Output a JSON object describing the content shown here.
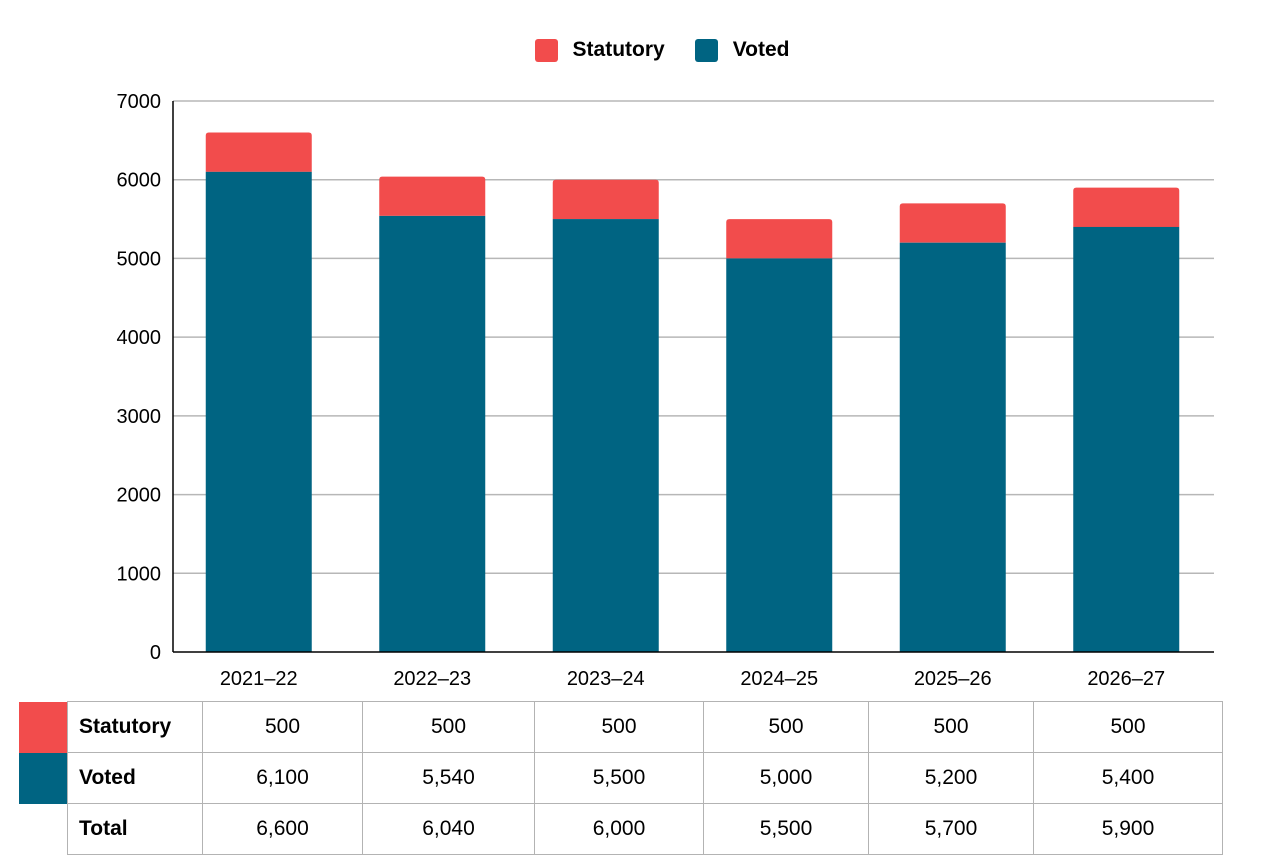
{
  "chart_data": {
    "type": "bar",
    "stacked": true,
    "categories": [
      "2021–22",
      "2022–23",
      "2023–24",
      "2024–25",
      "2025–26",
      "2026–27"
    ],
    "series": [
      {
        "name": "Voted",
        "values": [
          6100,
          5540,
          5500,
          5000,
          5200,
          5400
        ],
        "color": "#006482"
      },
      {
        "name": "Statutory",
        "values": [
          500,
          500,
          500,
          500,
          500,
          500
        ],
        "color": "#f24c4c"
      }
    ],
    "ylim": [
      0,
      7000
    ],
    "yticks": [
      0,
      1000,
      2000,
      3000,
      4000,
      5000,
      6000,
      7000
    ],
    "grid": true,
    "legend_position": "top"
  },
  "legend": [
    {
      "label": "Statutory",
      "color": "#f24c4c"
    },
    {
      "label": "Voted",
      "color": "#006482"
    }
  ],
  "table": {
    "rows": [
      {
        "label": "Statutory",
        "color": "#f24c4c",
        "values": [
          "500",
          "500",
          "500",
          "500",
          "500",
          "500"
        ]
      },
      {
        "label": "Voted",
        "color": "#006482",
        "values": [
          "6,100",
          "5,540",
          "5,500",
          "5,000",
          "5,200",
          "5,400"
        ]
      },
      {
        "label": "Total",
        "color": "",
        "values": [
          "6,600",
          "6,040",
          "6,000",
          "5,500",
          "5,700",
          "5,900"
        ]
      }
    ]
  }
}
